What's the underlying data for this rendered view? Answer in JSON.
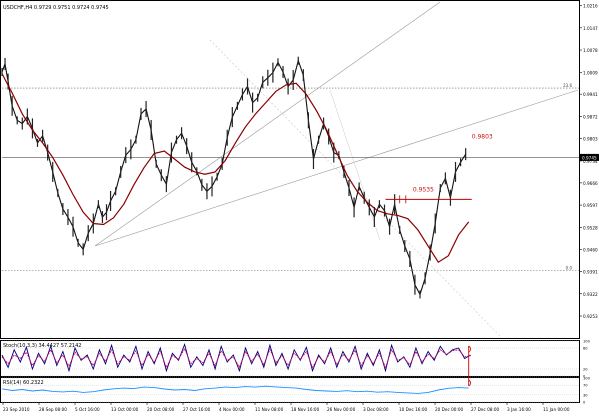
{
  "chart_data": {
    "type": "line",
    "header": "USDCHF,H4  0.9729 0.9751 0.9724 0.9745",
    "price_axis": {
      "ylim": [
        0.9188,
        1.0227
      ],
      "ticks": [
        "1.0216",
        "1.0147",
        "1.0078",
        "1.0009",
        "0.9941",
        "0.9872",
        "0.9803",
        "0.9734",
        "0.9666",
        "0.9597",
        "0.9528",
        "0.9460",
        "0.9391",
        "0.9322",
        "0.9253"
      ],
      "current_price": "0.9745",
      "fib_level_top": "23.6",
      "fib_level_bottom": "0.0"
    },
    "time_axis": {
      "labels": [
        "23 Sep 2010",
        "28 Sep 08:00",
        "5 Oct 16:00",
        "13 Oct 00:00",
        "20 Oct 08:00",
        "27 Oct 16:00",
        "4 Nov 00:00",
        "11 Nov 08:00",
        "18 Nov 16:00",
        "26 Nov 00:00",
        "3 Dec 08:00",
        "10 Dec 16:00",
        "20 Dec 00:00",
        "27 Dec 08:00",
        "3 Jan 16:00",
        "11 Jan 00:00"
      ]
    },
    "series": [
      {
        "name": "",
        "kind": "price",
        "x": [
          0,
          3,
          6,
          10,
          15,
          20,
          25,
          30,
          35,
          40,
          45,
          50,
          55,
          60,
          65,
          70,
          75,
          80,
          85,
          90,
          95,
          99,
          103,
          107,
          112,
          117,
          122,
          127,
          132,
          137,
          142,
          147,
          152,
          157,
          162,
          167,
          172,
          177,
          182,
          187,
          192,
          197,
          202,
          207,
          212,
          217,
          222,
          227,
          232,
          237,
          242,
          247,
          252,
          257,
          262,
          267,
          272,
          277,
          282,
          287,
          292,
          297,
          302,
          307,
          312,
          317,
          322,
          327,
          332,
          337,
          342,
          347,
          352,
          357,
          362,
          367,
          372,
          377,
          382,
          387,
          392,
          397,
          402,
          407,
          412,
          417,
          422,
          427,
          432,
          437,
          442,
          447,
          452,
          457
        ],
        "values": [
          1.001,
          1.0035,
          0.998,
          0.9905,
          0.986,
          0.985,
          0.9872,
          0.9835,
          0.979,
          0.9812,
          0.976,
          0.97,
          0.9635,
          0.9585,
          0.956,
          0.953,
          0.948,
          0.946,
          0.951,
          0.954,
          0.96,
          0.956,
          0.9575,
          0.961,
          0.964,
          0.97,
          0.9752,
          0.977,
          0.98,
          0.988,
          0.9895,
          0.983,
          0.9725,
          0.969,
          0.9662,
          0.976,
          0.98,
          0.982,
          0.978,
          0.973,
          0.9702,
          0.966,
          0.964,
          0.9655,
          0.9685,
          0.9725,
          0.9806,
          0.987,
          0.9905,
          0.994,
          0.9965,
          0.9915,
          0.993,
          0.9978,
          0.9992,
          1.0008,
          1.004,
          1.001,
          0.9965,
          0.9985,
          1.0045,
          1.0,
          0.986,
          0.974,
          0.98,
          0.985,
          0.981,
          0.976,
          0.9752,
          0.97,
          0.965,
          0.959,
          0.9655,
          0.962,
          0.959,
          0.956,
          0.96,
          0.958,
          0.953,
          0.96,
          0.952,
          0.947,
          0.943,
          0.935,
          0.932,
          0.937,
          0.945,
          0.954,
          0.965,
          0.968,
          0.962,
          0.97,
          0.973,
          0.9755
        ]
      },
      {
        "name": "",
        "kind": "moving-average",
        "x": [
          0,
          10,
          20,
          30,
          40,
          50,
          60,
          70,
          80,
          90,
          100,
          110,
          120,
          130,
          140,
          150,
          160,
          170,
          180,
          190,
          200,
          210,
          220,
          230,
          240,
          250,
          260,
          270,
          280,
          290,
          300,
          310,
          320,
          330,
          340,
          350,
          360,
          370,
          380,
          390,
          400,
          410,
          420,
          430,
          440,
          450,
          460
        ],
        "values": [
          1.0005,
          0.9945,
          0.988,
          0.983,
          0.979,
          0.9745,
          0.969,
          0.963,
          0.9575,
          0.954,
          0.9537,
          0.9558,
          0.96,
          0.966,
          0.9713,
          0.9757,
          0.9765,
          0.974,
          0.9715,
          0.97,
          0.9693,
          0.97,
          0.9735,
          0.979,
          0.984,
          0.988,
          0.9915,
          0.995,
          0.997,
          0.9975,
          0.994,
          0.989,
          0.983,
          0.976,
          0.969,
          0.964,
          0.9605,
          0.958,
          0.957,
          0.9565,
          0.9555,
          0.952,
          0.947,
          0.942,
          0.944,
          0.9505,
          0.9545
        ]
      }
    ],
    "annotations": [
      {
        "text": "0.9803",
        "x": 463,
        "y": 0.9803,
        "color": "#d01010"
      },
      {
        "text": "0.9535",
        "x": 405,
        "y": 0.964,
        "color": "#d01010"
      }
    ],
    "indicators": [
      {
        "name": "",
        "label": "Stoch(10,3,3) 34.4427 57.2142",
        "ylim": [
          0,
          100
        ],
        "levels": [
          "100",
          "80",
          "20",
          "0"
        ],
        "x": [
          0,
          6,
          12,
          18,
          24,
          30,
          36,
          42,
          48,
          54,
          60,
          66,
          72,
          78,
          84,
          90,
          96,
          102,
          108,
          114,
          120,
          126,
          132,
          138,
          144,
          150,
          156,
          162,
          168,
          174,
          180,
          186,
          192,
          198,
          204,
          210,
          216,
          222,
          228,
          234,
          240,
          246,
          252,
          258,
          264,
          270,
          276,
          282,
          288,
          294,
          300,
          306,
          312,
          318,
          324,
          330,
          336,
          342,
          348,
          354,
          360,
          366,
          372,
          378,
          384,
          390,
          396,
          402,
          408,
          414,
          420,
          426,
          432,
          438,
          444,
          450,
          456,
          462
        ],
        "k": [
          60,
          25,
          75,
          40,
          82,
          20,
          65,
          35,
          85,
          30,
          70,
          15,
          80,
          45,
          60,
          20,
          75,
          35,
          88,
          25,
          60,
          40,
          85,
          20,
          70,
          35,
          80,
          15,
          65,
          45,
          90,
          25,
          55,
          30,
          75,
          20,
          85,
          40,
          60,
          15,
          80,
          35,
          70,
          25,
          88,
          30,
          65,
          20,
          75,
          45,
          82,
          15,
          60,
          35,
          80,
          25,
          70,
          40,
          85,
          20,
          65,
          30,
          75,
          15,
          88,
          40,
          55,
          25,
          80,
          35,
          70,
          45,
          85,
          60,
          75,
          80,
          50,
          60
        ],
        "d": [
          55,
          35,
          60,
          50,
          68,
          30,
          58,
          42,
          75,
          38,
          60,
          28,
          68,
          48,
          55,
          30,
          65,
          42,
          75,
          35,
          55,
          45,
          72,
          30,
          62,
          40,
          70,
          25,
          58,
          48,
          78,
          35,
          50,
          38,
          65,
          30,
          72,
          45,
          55,
          25,
          70,
          42,
          62,
          32,
          76,
          38,
          58,
          30,
          65,
          48,
          70,
          25,
          55,
          40,
          70,
          32,
          62,
          45,
          74,
          30,
          58,
          36,
          65,
          25,
          75,
          45,
          52,
          32,
          70,
          40,
          62,
          50,
          75,
          62,
          72,
          75,
          55,
          58
        ]
      },
      {
        "name": "",
        "label": "RSI(14) 60.2322",
        "ylim": [
          0,
          100
        ],
        "levels": [
          "100",
          "70",
          "30",
          "0"
        ],
        "x": [
          0,
          10,
          20,
          30,
          40,
          50,
          60,
          70,
          80,
          90,
          100,
          110,
          120,
          130,
          140,
          150,
          160,
          170,
          180,
          190,
          200,
          210,
          220,
          230,
          240,
          250,
          260,
          270,
          280,
          290,
          300,
          310,
          320,
          330,
          340,
          350,
          360,
          370,
          380,
          390,
          400,
          410,
          420,
          430,
          440,
          450,
          460
        ],
        "values": [
          55,
          48,
          52,
          46,
          50,
          44,
          42,
          45,
          40,
          43,
          50,
          55,
          58,
          56,
          62,
          60,
          54,
          50,
          52,
          48,
          55,
          58,
          62,
          60,
          64,
          62,
          66,
          63,
          60,
          58,
          52,
          48,
          46,
          44,
          47,
          43,
          45,
          41,
          43,
          40,
          38,
          36,
          40,
          50,
          57,
          60,
          58
        ]
      }
    ]
  }
}
